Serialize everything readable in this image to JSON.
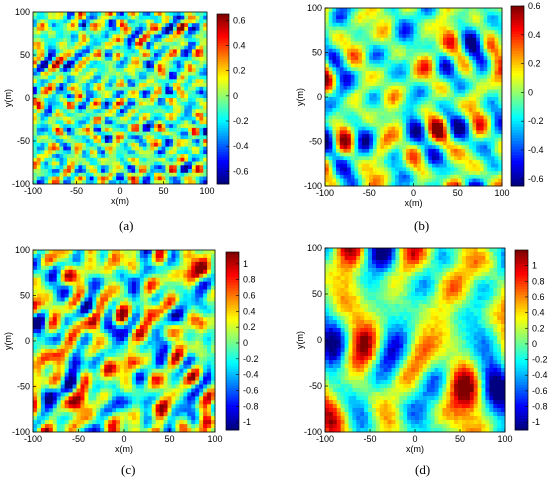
{
  "chart_data": [
    {
      "type": "heatmap",
      "caption": "(a)",
      "xlabel": "x(m)",
      "ylabel": "y(m)",
      "xlim": [
        -100,
        100
      ],
      "ylim": [
        -100,
        100
      ],
      "xticks": [
        "-100",
        "-50",
        "0",
        "50",
        "100"
      ],
      "yticks": [
        "100",
        "50",
        "0",
        "-50",
        "-100"
      ],
      "colorbar": {
        "min": -0.7,
        "max": 0.65,
        "ticks": [
          "0.6",
          "0.4",
          "0.2",
          "0",
          "-0.2",
          "-0.4",
          "-0.6"
        ]
      },
      "pattern": "fine isotropic"
    },
    {
      "type": "heatmap",
      "caption": "(b)",
      "xlabel": "x(m)",
      "ylabel": "y(m)",
      "xlim": [
        -100,
        100
      ],
      "ylim": [
        -100,
        100
      ],
      "xticks": [
        "-100",
        "-50",
        "0",
        "50",
        "100"
      ],
      "yticks": [
        "100",
        "50",
        "0",
        "-50",
        "-100"
      ],
      "colorbar": {
        "min": -0.65,
        "max": 0.6,
        "ticks": [
          "0.6",
          "0.4",
          "0.2",
          "0",
          "-0.2",
          "-0.4",
          "-0.6"
        ]
      },
      "pattern": "horizontally elongated"
    },
    {
      "type": "heatmap",
      "caption": "(c)",
      "xlabel": "x(m)",
      "ylabel": "y(m)",
      "xlim": [
        -100,
        100
      ],
      "ylim": [
        -100,
        100
      ],
      "xticks": [
        "-100",
        "-50",
        "0",
        "50",
        "100"
      ],
      "yticks": [
        "100",
        "50",
        "0",
        "-50",
        "-100"
      ],
      "colorbar": {
        "min": -1.1,
        "max": 1.15,
        "ticks": [
          "1",
          "0.8",
          "0.6",
          "0.4",
          "0.2",
          "0",
          "-0.2",
          "-0.4",
          "-0.6",
          "-0.8",
          "-1"
        ]
      },
      "pattern": "coarse isotropic"
    },
    {
      "type": "heatmap",
      "caption": "(d)",
      "xlabel": "x(m)",
      "ylabel": "y(m)",
      "xlim": [
        -100,
        100
      ],
      "ylim": [
        -100,
        100
      ],
      "xticks": [
        "-100",
        "-50",
        "0",
        "50",
        "100"
      ],
      "yticks": [
        "100",
        "50",
        "0",
        "-50",
        "-100"
      ],
      "colorbar": {
        "min": -1.1,
        "max": 1.2,
        "ticks": [
          "1",
          "0.8",
          "0.6",
          "0.4",
          "0.2",
          "0",
          "-0.2",
          "-0.4",
          "-0.6",
          "-0.8",
          "-1"
        ]
      },
      "pattern": "coarse horizontally elongated"
    }
  ]
}
